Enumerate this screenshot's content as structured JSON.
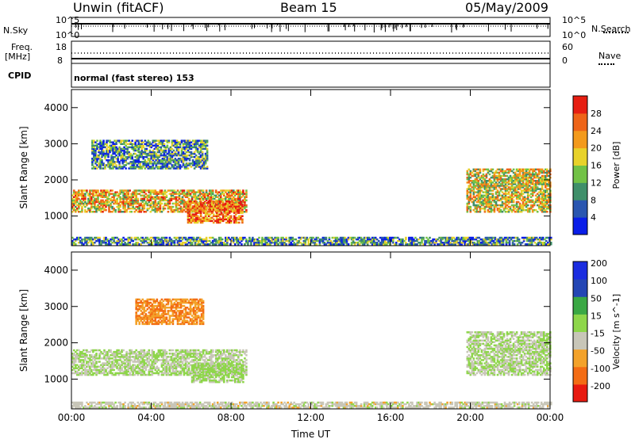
{
  "header": {
    "station": "Unwin (fitACF)",
    "beam": "Beam 15",
    "date": "05/May/2009"
  },
  "top_panels": {
    "nsky_label": "N.Sky",
    "nsky_ticks": [
      "10^5",
      "10^0"
    ],
    "nsearch_label": "N.Search",
    "freq_label": "Freq.",
    "freq_unit": "[MHz]",
    "freq_ticks": [
      "18",
      "8"
    ],
    "nave_label": "Nave",
    "nave_ticks": [
      "60",
      "0"
    ],
    "cpid_label": "CPID",
    "cpid_text": "normal (fast stereo) 153"
  },
  "colors": {
    "power": [
      "#0a1ee8",
      "#2a56b0",
      "#3f8f6a",
      "#72c246",
      "#e8d22a",
      "#f39a1c",
      "#ee6418",
      "#e61e12"
    ],
    "velocity": [
      "#e81a10",
      "#f36c14",
      "#f3a22a",
      "#c8c6b8",
      "#8ed64a",
      "#3aa844",
      "#2446b4",
      "#1a2ce0"
    ]
  },
  "chart_data": [
    {
      "type": "heatmap",
      "title": "",
      "xlabel": "",
      "ylabel": "Slant Range [km]",
      "x_ticks": [
        "00:00",
        "04:00",
        "08:00",
        "12:00",
        "16:00",
        "20:00",
        "00:00"
      ],
      "y_ticks": [
        1000,
        2000,
        3000,
        4000
      ],
      "ylim": [
        180,
        4500
      ],
      "colorbar": {
        "label": "Power [dB]",
        "ticks": [
          4,
          8,
          12,
          16,
          20,
          24,
          28
        ],
        "range": [
          0,
          32
        ]
      },
      "regions": [
        {
          "t": [
            0.0,
            8.8
          ],
          "r": [
            1100,
            1700
          ],
          "level": 20
        },
        {
          "t": [
            5.8,
            8.6
          ],
          "r": [
            800,
            1400
          ],
          "level": 26
        },
        {
          "t": [
            1.0,
            6.8
          ],
          "r": [
            2300,
            3100
          ],
          "level": 10
        },
        {
          "t": [
            19.8,
            24.0
          ],
          "r": [
            1100,
            2300
          ],
          "level": 18
        },
        {
          "t": [
            0.0,
            24.0
          ],
          "r": [
            200,
            400
          ],
          "level": 10
        }
      ]
    },
    {
      "type": "heatmap",
      "title": "",
      "xlabel": "Time UT",
      "ylabel": "Slant Range [km]",
      "x_ticks": [
        "00:00",
        "04:00",
        "08:00",
        "12:00",
        "16:00",
        "20:00",
        "00:00"
      ],
      "y_ticks": [
        1000,
        2000,
        3000,
        4000
      ],
      "ylim": [
        180,
        4500
      ],
      "colorbar": {
        "label": "Velocity [m s^-1]",
        "ticks": [
          200,
          100,
          50,
          15,
          -15,
          -50,
          -100,
          -200
        ],
        "range": [
          -250,
          250
        ]
      },
      "regions": [
        {
          "t": [
            0.0,
            8.8
          ],
          "r": [
            1100,
            1800
          ],
          "level": 0
        },
        {
          "t": [
            6.0,
            8.6
          ],
          "r": [
            900,
            1400
          ],
          "level": 20
        },
        {
          "t": [
            3.2,
            6.6
          ],
          "r": [
            2500,
            3200
          ],
          "level": -120
        },
        {
          "t": [
            19.8,
            24.0
          ],
          "r": [
            1100,
            2300
          ],
          "level": 0
        },
        {
          "t": [
            0.0,
            24.0
          ],
          "r": [
            200,
            350
          ],
          "level": -30
        }
      ]
    }
  ]
}
